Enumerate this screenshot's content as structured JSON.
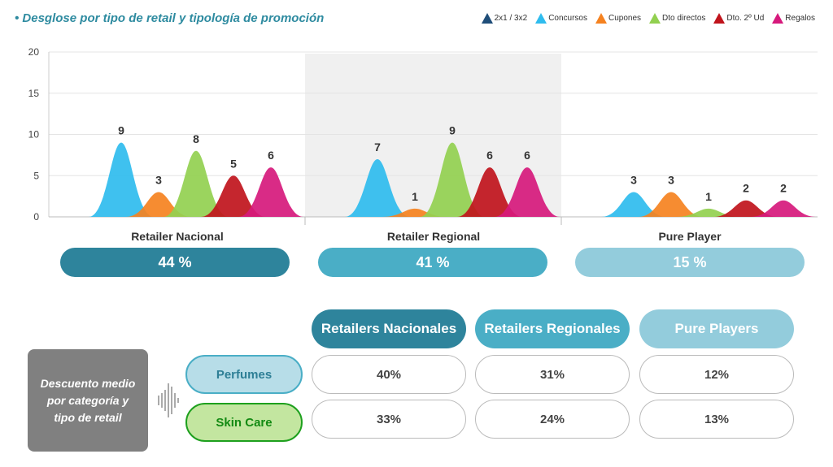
{
  "title": "• Desglose por tipo de retail y tipología de promoción",
  "chart_data": {
    "type": "area",
    "ylim": [
      0,
      20
    ],
    "yticks": [
      0,
      5,
      10,
      15,
      20
    ],
    "grid": true,
    "legend_position": "top-right",
    "categories": [
      "Retailer Nacional",
      "Retailer Regional",
      "Pure Player"
    ],
    "series": [
      {
        "name": "2x1 / 3x2",
        "color": "#1f4e79",
        "values": [
          0,
          0,
          0
        ]
      },
      {
        "name": "Concursos",
        "color": "#2fbcee",
        "values": [
          9,
          7,
          3
        ]
      },
      {
        "name": "Cupones",
        "color": "#f58220",
        "values": [
          3,
          1,
          3
        ]
      },
      {
        "name": "Dto directos",
        "color": "#92d050",
        "values": [
          8,
          9,
          1
        ]
      },
      {
        "name": "Dto. 2º Ud",
        "color": "#c0141c",
        "values": [
          5,
          6,
          2
        ]
      },
      {
        "name": "Regalos",
        "color": "#d6197c",
        "values": [
          6,
          6,
          2
        ]
      }
    ],
    "shares": [
      "44 %",
      "41 %",
      "15 %"
    ],
    "share_colors": [
      "#2e849c",
      "#4aaec6",
      "#93ccdc"
    ]
  },
  "table": {
    "side_label": "Descuento medio por categoría y tipo de retail",
    "headers": [
      "Retailers Nacionales",
      "Retailers Regionales",
      "Pure Players"
    ],
    "rows": [
      {
        "label": "Perfumes",
        "values": [
          "40%",
          "31%",
          "12%"
        ]
      },
      {
        "label": "Skin Care",
        "values": [
          "33%",
          "24%",
          "13%"
        ]
      }
    ]
  }
}
